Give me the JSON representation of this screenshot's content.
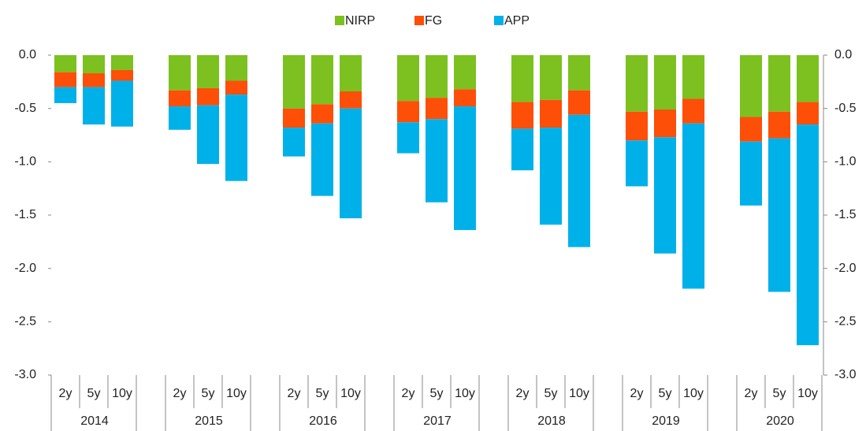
{
  "chart_data": {
    "type": "stacked_bar",
    "categories": [
      "2y",
      "5y",
      "10y",
      "2y",
      "5y",
      "10y",
      "2y",
      "5y",
      "10y",
      "2y",
      "5y",
      "10y",
      "2y",
      "5y",
      "10y",
      "2y",
      "5y",
      "10y",
      "2y",
      "5y",
      "10y"
    ],
    "category_groups": [
      "2014",
      "2015",
      "2016",
      "2017",
      "2018",
      "2019",
      "2020"
    ],
    "series": [
      {
        "name": "NIRP",
        "color": "#7cc11f",
        "values": [
          -0.16,
          -0.17,
          -0.14,
          -0.33,
          -0.31,
          -0.24,
          -0.5,
          -0.46,
          -0.34,
          -0.43,
          -0.4,
          -0.32,
          -0.44,
          -0.42,
          -0.33,
          -0.53,
          -0.51,
          -0.41,
          -0.58,
          -0.53,
          -0.44
        ]
      },
      {
        "name": "FG",
        "color": "#fe4f08",
        "values": [
          -0.14,
          -0.13,
          -0.1,
          -0.15,
          -0.16,
          -0.13,
          -0.18,
          -0.18,
          -0.16,
          -0.2,
          -0.2,
          -0.16,
          -0.25,
          -0.26,
          -0.23,
          -0.27,
          -0.26,
          -0.23,
          -0.23,
          -0.25,
          -0.21
        ]
      },
      {
        "name": "APP",
        "color": "#00b1e9",
        "values": [
          -0.15,
          -0.35,
          -0.43,
          -0.22,
          -0.55,
          -0.81,
          -0.27,
          -0.68,
          -1.03,
          -0.29,
          -0.78,
          -1.16,
          -0.39,
          -0.91,
          -1.24,
          -0.43,
          -1.09,
          -1.55,
          -0.6,
          -1.44,
          -2.07
        ]
      }
    ],
    "ylim": [
      0,
      -3.0
    ],
    "yticks": [
      {
        "value": 0,
        "label": "0.0"
      },
      {
        "value": -0.5,
        "label": "-0.5"
      },
      {
        "value": -1.0,
        "label": "-1.0"
      },
      {
        "value": -1.5,
        "label": "-1.5"
      },
      {
        "value": -2.0,
        "label": "-2.0"
      },
      {
        "value": -2.5,
        "label": "-2.5"
      },
      {
        "value": -3.0,
        "label": "-3.0"
      }
    ],
    "y2lim": [
      0,
      -3.0
    ],
    "y2ticks": [
      {
        "value": 0,
        "label": "0.0"
      },
      {
        "value": -0.5,
        "label": "-0.5"
      },
      {
        "value": -1.0,
        "label": "-1.0"
      },
      {
        "value": -1.5,
        "label": "-1.5"
      },
      {
        "value": -2.0,
        "label": "-2.0"
      },
      {
        "value": -2.5,
        "label": "-2.5"
      },
      {
        "value": -3.0,
        "label": "-3.0"
      }
    ],
    "legend": "top"
  }
}
